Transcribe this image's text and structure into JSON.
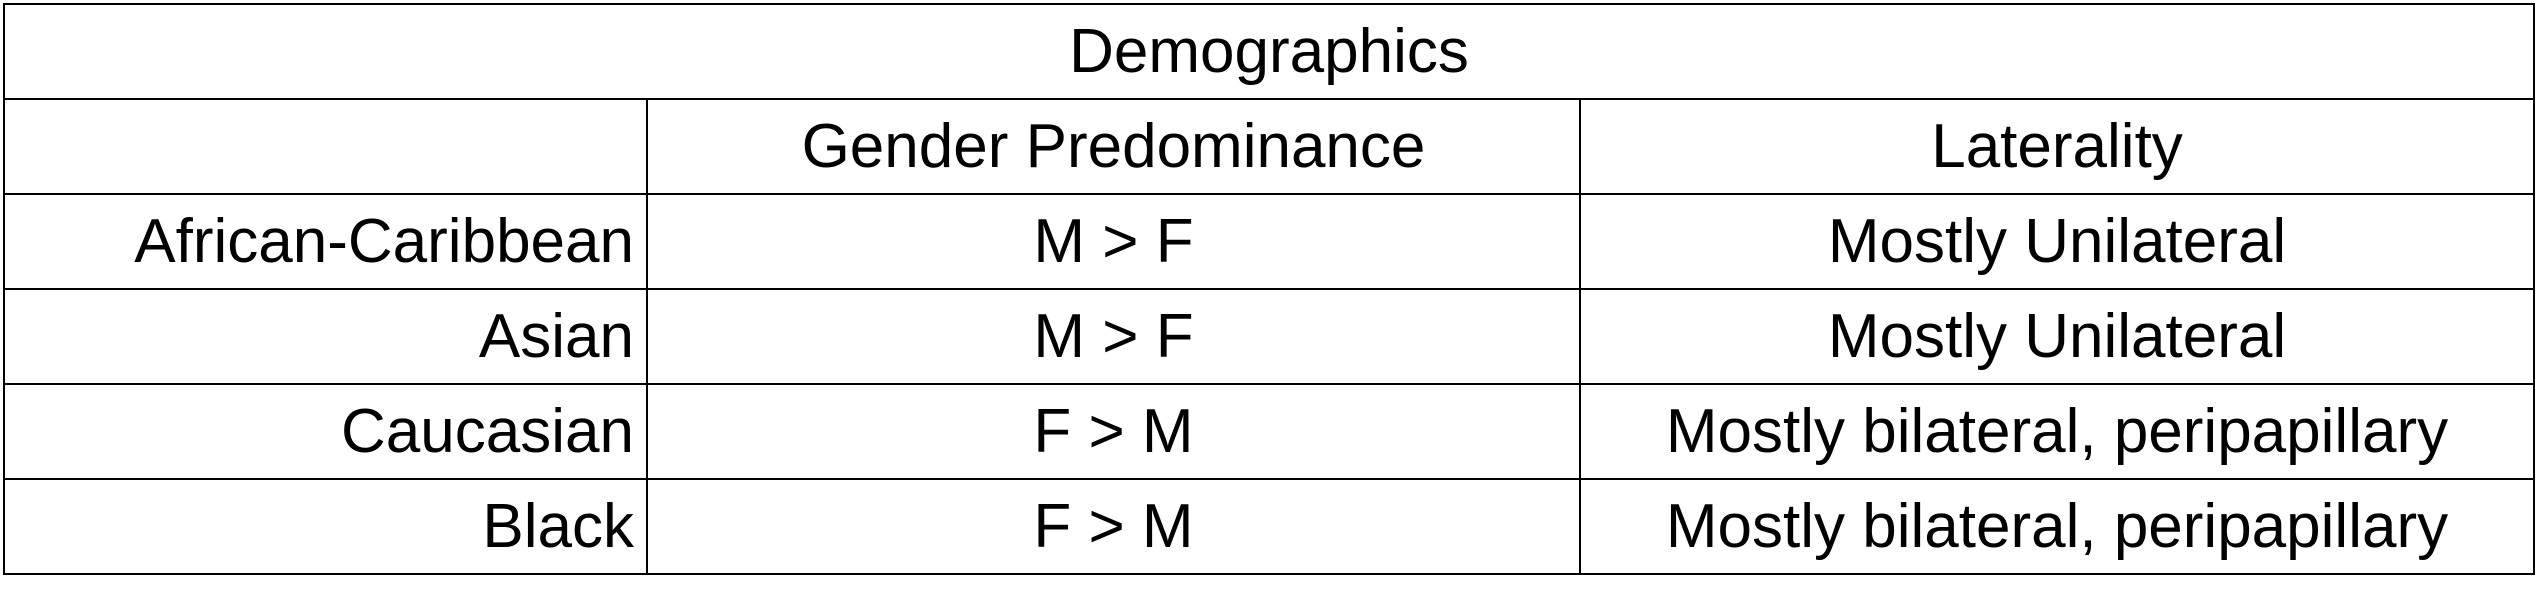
{
  "table": {
    "title": "Demographics",
    "columns": [
      "",
      "Gender Predominance",
      "Laterality"
    ],
    "rows": [
      {
        "group": "African-Caribbean",
        "gender": "M > F",
        "laterality": "Mostly Unilateral"
      },
      {
        "group": "Asian",
        "gender": "M > F",
        "laterality": "Mostly Unilateral"
      },
      {
        "group": "Caucasian",
        "gender": "F > M",
        "laterality": "Mostly bilateral, peripapillary"
      },
      {
        "group": "Black",
        "gender": "F > M",
        "laterality": "Mostly bilateral, peripapillary"
      }
    ]
  }
}
